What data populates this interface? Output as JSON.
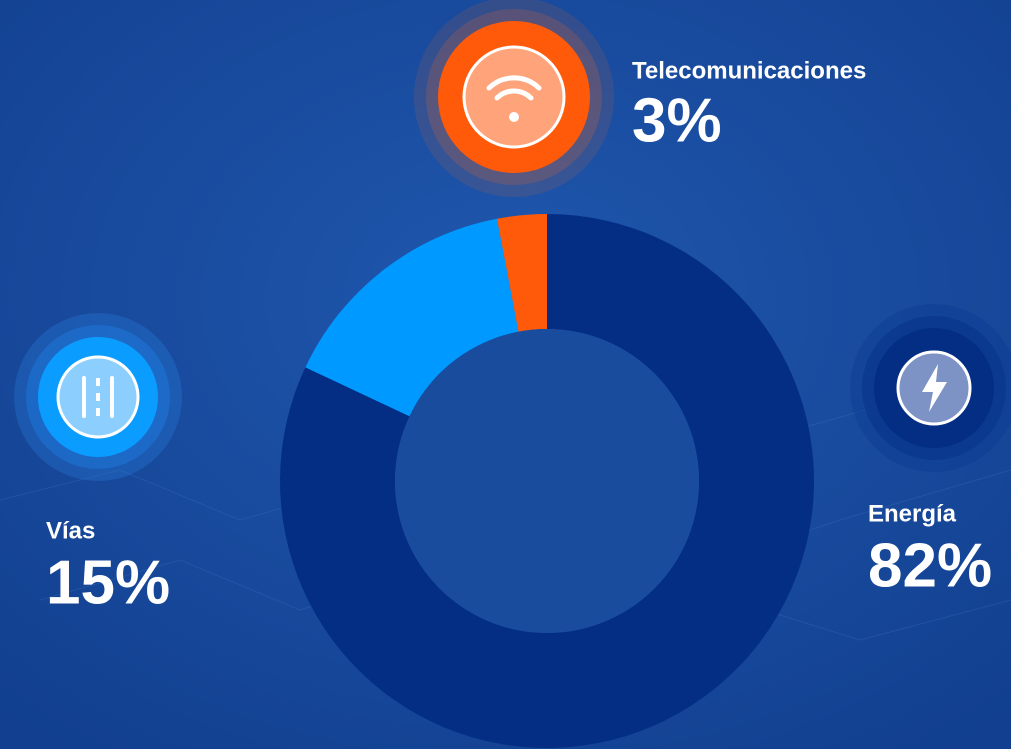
{
  "chart_data": {
    "type": "donut",
    "categories": [
      "Energía",
      "Vías",
      "Telecomunicaciones"
    ],
    "values": [
      82,
      15,
      3
    ],
    "value_labels": [
      "82%",
      "15%",
      "3%"
    ],
    "colors": [
      "#032e84",
      "#0099ff",
      "#ff5a0a"
    ]
  }
}
